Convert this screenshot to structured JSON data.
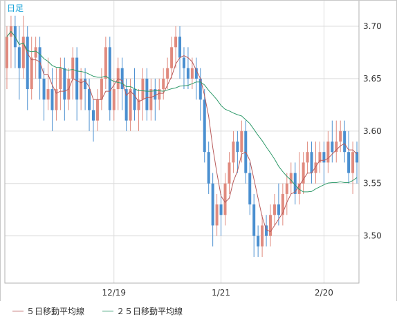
{
  "chart_data": {
    "type": "candlestick",
    "period_label": "日足",
    "y_ticks": [
      "3.70",
      "3.65",
      "3.60",
      "3.55",
      "3.50"
    ],
    "y_tick_values": [
      3.7,
      3.65,
      3.6,
      3.55,
      3.5
    ],
    "ylim": [
      3.455,
      3.725
    ],
    "x_tick_labels": [
      "12/19",
      "1/21",
      "2/20"
    ],
    "x_tick_indices": [
      26,
      52,
      77
    ],
    "grid": true,
    "colors": {
      "up": "#e08a7e",
      "down": "#4a8fd0",
      "ma5": "#b85a5a",
      "ma25": "#2f9a6a",
      "grid": "#dcdcdc",
      "frame": "#b0b0b0",
      "text": "#333333",
      "period": "#1aa3d8"
    },
    "candles": [
      [
        3.66,
        3.69,
        3.7,
        3.64
      ],
      [
        3.69,
        3.7,
        3.71,
        3.66
      ],
      [
        3.7,
        3.68,
        3.71,
        3.66
      ],
      [
        3.68,
        3.66,
        3.7,
        3.63
      ],
      [
        3.66,
        3.69,
        3.71,
        3.65
      ],
      [
        3.69,
        3.64,
        3.7,
        3.62
      ],
      [
        3.64,
        3.67,
        3.69,
        3.63
      ],
      [
        3.67,
        3.68,
        3.69,
        3.65
      ],
      [
        3.68,
        3.65,
        3.69,
        3.63
      ],
      [
        3.65,
        3.63,
        3.66,
        3.61
      ],
      [
        3.63,
        3.64,
        3.67,
        3.62
      ],
      [
        3.64,
        3.62,
        3.66,
        3.6
      ],
      [
        3.62,
        3.64,
        3.66,
        3.61
      ],
      [
        3.64,
        3.66,
        3.67,
        3.62
      ],
      [
        3.66,
        3.63,
        3.67,
        3.61
      ],
      [
        3.63,
        3.65,
        3.66,
        3.62
      ],
      [
        3.65,
        3.67,
        3.68,
        3.63
      ],
      [
        3.67,
        3.63,
        3.68,
        3.61
      ],
      [
        3.63,
        3.65,
        3.66,
        3.62
      ],
      [
        3.65,
        3.64,
        3.66,
        3.62
      ],
      [
        3.64,
        3.62,
        3.65,
        3.6
      ],
      [
        3.62,
        3.61,
        3.63,
        3.59
      ],
      [
        3.61,
        3.63,
        3.64,
        3.6
      ],
      [
        3.63,
        3.65,
        3.66,
        3.62
      ],
      [
        3.65,
        3.68,
        3.69,
        3.64
      ],
      [
        3.68,
        3.62,
        3.69,
        3.61
      ],
      [
        3.62,
        3.64,
        3.65,
        3.61
      ],
      [
        3.64,
        3.66,
        3.67,
        3.62
      ],
      [
        3.66,
        3.64,
        3.67,
        3.62
      ],
      [
        3.64,
        3.61,
        3.65,
        3.6
      ],
      [
        3.61,
        3.64,
        3.65,
        3.6
      ],
      [
        3.64,
        3.62,
        3.66,
        3.61
      ],
      [
        3.62,
        3.63,
        3.64,
        3.6
      ],
      [
        3.63,
        3.65,
        3.66,
        3.61
      ],
      [
        3.65,
        3.62,
        3.66,
        3.61
      ],
      [
        3.62,
        3.64,
        3.65,
        3.61
      ],
      [
        3.64,
        3.63,
        3.65,
        3.61
      ],
      [
        3.63,
        3.64,
        3.65,
        3.62
      ],
      [
        3.64,
        3.65,
        3.66,
        3.63
      ],
      [
        3.65,
        3.66,
        3.67,
        3.64
      ],
      [
        3.66,
        3.68,
        3.69,
        3.65
      ],
      [
        3.68,
        3.69,
        3.7,
        3.66
      ],
      [
        3.69,
        3.67,
        3.7,
        3.65
      ],
      [
        3.67,
        3.66,
        3.68,
        3.64
      ],
      [
        3.66,
        3.65,
        3.68,
        3.64
      ],
      [
        3.65,
        3.66,
        3.67,
        3.64
      ],
      [
        3.66,
        3.65,
        3.67,
        3.63
      ],
      [
        3.65,
        3.63,
        3.66,
        3.61
      ],
      [
        3.63,
        3.58,
        3.64,
        3.57
      ],
      [
        3.58,
        3.55,
        3.59,
        3.54
      ],
      [
        3.55,
        3.51,
        3.56,
        3.49
      ],
      [
        3.51,
        3.53,
        3.54,
        3.5
      ],
      [
        3.53,
        3.52,
        3.54,
        3.5
      ],
      [
        3.52,
        3.55,
        3.56,
        3.51
      ],
      [
        3.55,
        3.57,
        3.58,
        3.54
      ],
      [
        3.57,
        3.59,
        3.6,
        3.56
      ],
      [
        3.59,
        3.58,
        3.6,
        3.56
      ],
      [
        3.58,
        3.6,
        3.61,
        3.57
      ],
      [
        3.6,
        3.56,
        3.61,
        3.55
      ],
      [
        3.56,
        3.53,
        3.57,
        3.52
      ],
      [
        3.53,
        3.5,
        3.54,
        3.48
      ],
      [
        3.5,
        3.49,
        3.51,
        3.48
      ],
      [
        3.49,
        3.51,
        3.52,
        3.48
      ],
      [
        3.51,
        3.5,
        3.52,
        3.49
      ],
      [
        3.5,
        3.52,
        3.53,
        3.49
      ],
      [
        3.52,
        3.53,
        3.54,
        3.51
      ],
      [
        3.53,
        3.52,
        3.55,
        3.51
      ],
      [
        3.52,
        3.54,
        3.55,
        3.51
      ],
      [
        3.54,
        3.55,
        3.56,
        3.52
      ],
      [
        3.55,
        3.56,
        3.57,
        3.54
      ],
      [
        3.56,
        3.54,
        3.57,
        3.53
      ],
      [
        3.54,
        3.55,
        3.58,
        3.53
      ],
      [
        3.55,
        3.57,
        3.58,
        3.54
      ],
      [
        3.57,
        3.58,
        3.59,
        3.56
      ],
      [
        3.58,
        3.56,
        3.59,
        3.55
      ],
      [
        3.56,
        3.57,
        3.59,
        3.55
      ],
      [
        3.57,
        3.58,
        3.59,
        3.56
      ],
      [
        3.58,
        3.57,
        3.59,
        3.55
      ],
      [
        3.57,
        3.59,
        3.6,
        3.56
      ],
      [
        3.59,
        3.58,
        3.61,
        3.57
      ],
      [
        3.58,
        3.59,
        3.61,
        3.57
      ],
      [
        3.59,
        3.6,
        3.61,
        3.58
      ],
      [
        3.6,
        3.58,
        3.61,
        3.57
      ],
      [
        3.58,
        3.56,
        3.6,
        3.55
      ],
      [
        3.56,
        3.58,
        3.59,
        3.54
      ],
      [
        3.58,
        3.57,
        3.59,
        3.55
      ]
    ],
    "series": [
      {
        "name": "５日移動平均線",
        "color": "#b85a5a"
      },
      {
        "name": "２５日移動平均線",
        "color": "#2f9a6a"
      }
    ]
  }
}
